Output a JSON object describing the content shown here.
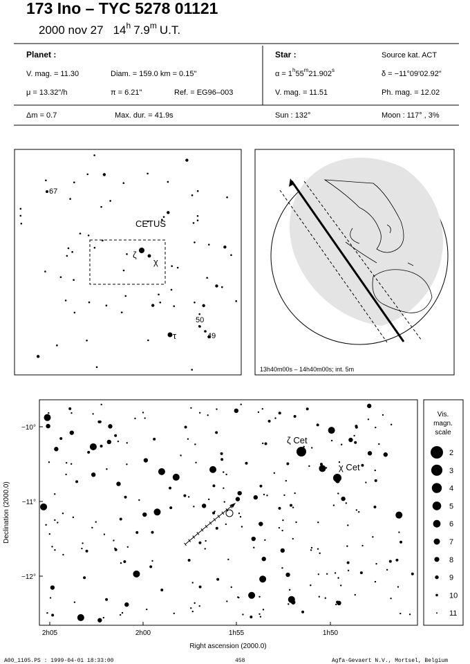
{
  "header": {
    "title": "173 Ino  –  TYC 5278 01121",
    "date": "2000 nov 27",
    "hour": "14",
    "hour_unit": "h",
    "minute": "7.9",
    "minute_unit": "m",
    "timescale": "U.T."
  },
  "info": {
    "planet_heading": "Planet :",
    "planet_vmag": "V. mag. = 11.30",
    "diameter": "Diam. = 159.0 km = 0.15\"",
    "motion": "μ = 13.32\"/h",
    "parallax": "π = 6.21\"",
    "reference": "Ref. = EG96–003",
    "star_heading": "Star :",
    "source": "Source kat.  ACT",
    "ra_prefix": "α = 1",
    "ra_h": "h",
    "ra_min": "55",
    "ra_m": "m",
    "ra_sec": "21.902",
    "ra_s": "s",
    "dec": "δ = −11°09'02.92\"",
    "star_vmag": "V. mag. = 11.51",
    "star_phmag": "Ph. mag. = 12.02",
    "delta_mag": "Δm = 0.7",
    "max_duration": "Max. dur. = 41.9s",
    "sun": "Sun : 132°",
    "moon": "Moon : 117° ,  3%"
  },
  "finder": {
    "labels": [
      "67",
      "CETUS",
      "ζ",
      "χ",
      "50",
      "49",
      "τ"
    ]
  },
  "globe": {
    "caption": "13h40m00s – 14h40m00s; int. 5m"
  },
  "sky_chart": {
    "yticks": [
      "−10°",
      "−11°",
      "−12°"
    ],
    "xticks": [
      "2h05",
      "2h00",
      "1h55",
      "1h50"
    ],
    "ylabel": "Declination (2000.0)",
    "xlabel": "Right ascension (2000.0)",
    "star_labels": [
      "ζ Cet",
      "χ Cet"
    ],
    "legend_title": [
      "Vis.",
      "magn.",
      "scale"
    ],
    "legend_magnitudes": [
      2,
      3,
      4,
      5,
      6,
      7,
      8,
      9,
      10,
      11
    ]
  },
  "footer": {
    "file": "A00_1105.PS : 1999-04-01 18:33:00",
    "page": "458",
    "publisher": "Agfa-Gevaert N.V., Mortsel, Belgium"
  }
}
